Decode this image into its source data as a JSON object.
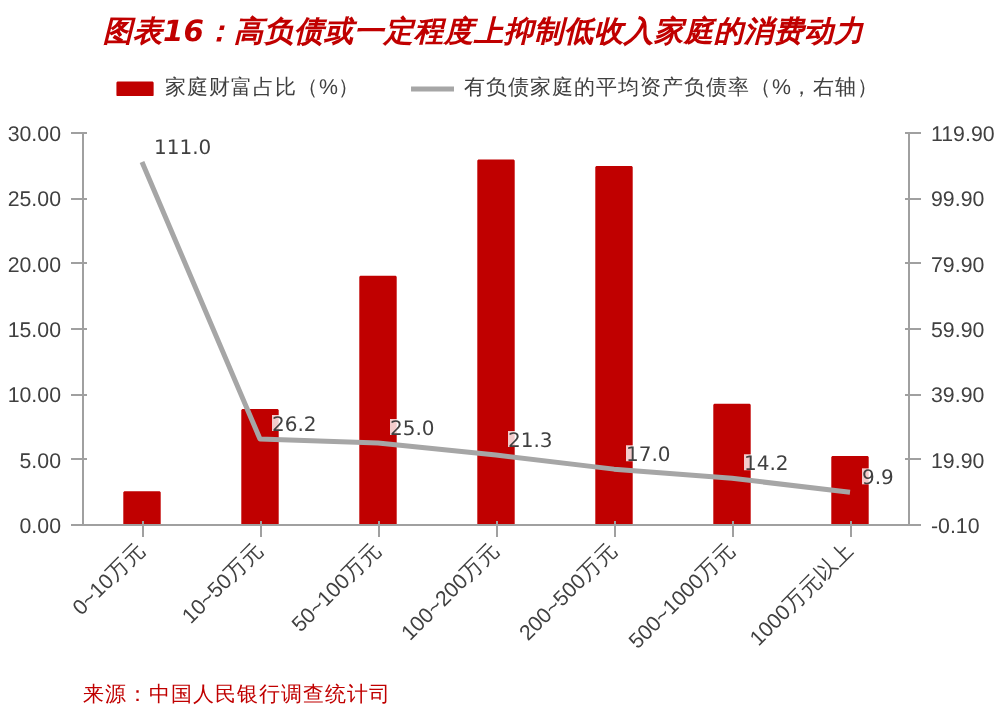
{
  "chart_data": {
    "type": "bar",
    "title": "图表16：高负债或一定程度上抑制低收入家庭的消费动力",
    "categories": [
      "0~10万元",
      "10~50万元",
      "50~100万元",
      "100~200万元",
      "200~500万元",
      "500~1000万元",
      "1000万元以上"
    ],
    "series": [
      {
        "name": "家庭财富占比（%）",
        "color": "#c00000",
        "values": [
          2.5,
          8.8,
          19.0,
          27.9,
          27.4,
          9.2,
          5.2
        ]
      },
      {
        "name": "有负债家庭的平均资产负债率（%，右轴）",
        "type": "line",
        "axis": "y2",
        "color": "#a6a6a6",
        "values": [
          111.0,
          26.2,
          25.0,
          21.3,
          17.0,
          14.2,
          9.9
        ],
        "value_labels": [
          "111.0",
          "26.2",
          "25.0",
          "21.3",
          "17.0",
          "14.2",
          "9.9"
        ]
      }
    ],
    "ylim": [
      0,
      30
    ],
    "yticks": [
      {
        "value": 0,
        "label": "0.00"
      },
      {
        "value": 5,
        "label": "5.00"
      },
      {
        "value": 10,
        "label": "10.00"
      },
      {
        "value": 15,
        "label": "15.00"
      },
      {
        "value": 20,
        "label": "20.00"
      },
      {
        "value": 25,
        "label": "25.00"
      },
      {
        "value": 30,
        "label": "30.00"
      }
    ],
    "y2lim": [
      -0.1,
      119.9
    ],
    "y2ticks": [
      {
        "value": -0.1,
        "label": "-0.10"
      },
      {
        "value": 19.9,
        "label": "19.90"
      },
      {
        "value": 39.9,
        "label": "39.90"
      },
      {
        "value": 59.9,
        "label": "59.90"
      },
      {
        "value": 79.9,
        "label": "79.90"
      },
      {
        "value": 99.9,
        "label": "99.90"
      },
      {
        "value": 119.9,
        "label": "119.90"
      }
    ],
    "grid": false,
    "legend": "top",
    "annotations": [
      "来源：中国人民银行调查统计司"
    ]
  }
}
